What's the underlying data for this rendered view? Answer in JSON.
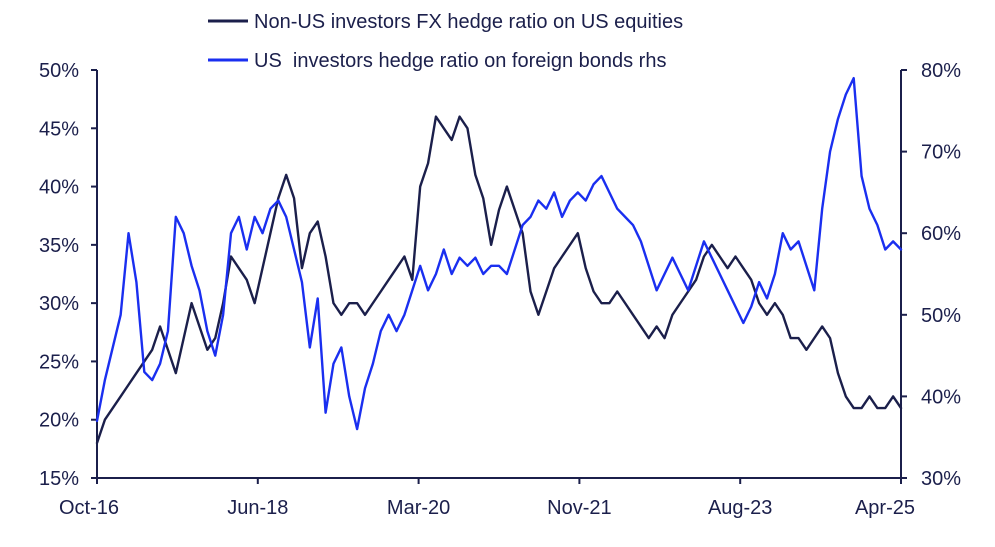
{
  "chart_data": {
    "type": "line",
    "title": "",
    "x_tick_labels": [
      "Oct-16",
      "Jun-18",
      "Mar-20",
      "Nov-21",
      "Aug-23",
      "Apr-25"
    ],
    "y_left": {
      "range": [
        0.15,
        0.5
      ],
      "ticks": [
        "15%",
        "20%",
        "25%",
        "30%",
        "35%",
        "40%",
        "45%",
        "50%"
      ]
    },
    "y_right": {
      "range": [
        0.3,
        0.8
      ],
      "ticks": [
        "30%",
        "40%",
        "50%",
        "60%",
        "70%",
        "80%"
      ]
    },
    "grid": false,
    "legend_position": "top",
    "colors": {
      "axis": "#1b1f4b",
      "series_dark": "#1b1f4b",
      "series_blue": "#1a2ff0"
    },
    "series": [
      {
        "name": "Non-US investors FX hedge ratio on US equities",
        "axis": "left",
        "color": "#1b1f4b",
        "points": [
          [
            "2016-10",
            0.18
          ],
          [
            "2016-11",
            0.2
          ],
          [
            "2016-12",
            0.21
          ],
          [
            "2017-01",
            0.22
          ],
          [
            "2017-02",
            0.23
          ],
          [
            "2017-03",
            0.24
          ],
          [
            "2017-04",
            0.25
          ],
          [
            "2017-05",
            0.26
          ],
          [
            "2017-06",
            0.28
          ],
          [
            "2017-07",
            0.26
          ],
          [
            "2017-08",
            0.24
          ],
          [
            "2017-09",
            0.27
          ],
          [
            "2017-10",
            0.3
          ],
          [
            "2017-11",
            0.28
          ],
          [
            "2017-12",
            0.26
          ],
          [
            "2018-01",
            0.27
          ],
          [
            "2018-02",
            0.3
          ],
          [
            "2018-03",
            0.34
          ],
          [
            "2018-04",
            0.33
          ],
          [
            "2018-05",
            0.32
          ],
          [
            "2018-06",
            0.3
          ],
          [
            "2018-07",
            0.33
          ],
          [
            "2018-08",
            0.36
          ],
          [
            "2018-09",
            0.39
          ],
          [
            "2018-10",
            0.41
          ],
          [
            "2018-11",
            0.39
          ],
          [
            "2018-12",
            0.33
          ],
          [
            "2019-01",
            0.36
          ],
          [
            "2019-02",
            0.37
          ],
          [
            "2019-03",
            0.34
          ],
          [
            "2019-04",
            0.3
          ],
          [
            "2019-05",
            0.29
          ],
          [
            "2019-06",
            0.3
          ],
          [
            "2019-07",
            0.3
          ],
          [
            "2019-08",
            0.29
          ],
          [
            "2019-09",
            0.3
          ],
          [
            "2019-10",
            0.31
          ],
          [
            "2019-11",
            0.32
          ],
          [
            "2019-12",
            0.33
          ],
          [
            "2020-01",
            0.34
          ],
          [
            "2020-02",
            0.32
          ],
          [
            "2020-03",
            0.4
          ],
          [
            "2020-04",
            0.42
          ],
          [
            "2020-05",
            0.46
          ],
          [
            "2020-06",
            0.45
          ],
          [
            "2020-07",
            0.44
          ],
          [
            "2020-08",
            0.46
          ],
          [
            "2020-09",
            0.45
          ],
          [
            "2020-10",
            0.41
          ],
          [
            "2020-11",
            0.39
          ],
          [
            "2020-12",
            0.35
          ],
          [
            "2021-01",
            0.38
          ],
          [
            "2021-02",
            0.4
          ],
          [
            "2021-03",
            0.38
          ],
          [
            "2021-04",
            0.36
          ],
          [
            "2021-05",
            0.31
          ],
          [
            "2021-06",
            0.29
          ],
          [
            "2021-07",
            0.31
          ],
          [
            "2021-08",
            0.33
          ],
          [
            "2021-09",
            0.34
          ],
          [
            "2021-10",
            0.35
          ],
          [
            "2021-11",
            0.36
          ],
          [
            "2021-12",
            0.33
          ],
          [
            "2022-01",
            0.31
          ],
          [
            "2022-02",
            0.3
          ],
          [
            "2022-03",
            0.3
          ],
          [
            "2022-04",
            0.31
          ],
          [
            "2022-05",
            0.3
          ],
          [
            "2022-06",
            0.29
          ],
          [
            "2022-07",
            0.28
          ],
          [
            "2022-08",
            0.27
          ],
          [
            "2022-09",
            0.28
          ],
          [
            "2022-10",
            0.27
          ],
          [
            "2022-11",
            0.29
          ],
          [
            "2022-12",
            0.3
          ],
          [
            "2023-01",
            0.31
          ],
          [
            "2023-02",
            0.32
          ],
          [
            "2023-03",
            0.34
          ],
          [
            "2023-04",
            0.35
          ],
          [
            "2023-05",
            0.34
          ],
          [
            "2023-06",
            0.33
          ],
          [
            "2023-07",
            0.34
          ],
          [
            "2023-08",
            0.33
          ],
          [
            "2023-09",
            0.32
          ],
          [
            "2023-10",
            0.3
          ],
          [
            "2023-11",
            0.29
          ],
          [
            "2023-12",
            0.3
          ],
          [
            "2024-01",
            0.29
          ],
          [
            "2024-02",
            0.27
          ],
          [
            "2024-03",
            0.27
          ],
          [
            "2024-04",
            0.26
          ],
          [
            "2024-05",
            0.27
          ],
          [
            "2024-06",
            0.28
          ],
          [
            "2024-07",
            0.27
          ],
          [
            "2024-08",
            0.24
          ],
          [
            "2024-09",
            0.22
          ],
          [
            "2024-10",
            0.21
          ],
          [
            "2024-11",
            0.21
          ],
          [
            "2024-12",
            0.22
          ],
          [
            "2025-01",
            0.21
          ],
          [
            "2025-02",
            0.21
          ],
          [
            "2025-03",
            0.22
          ],
          [
            "2025-04",
            0.21
          ]
        ]
      },
      {
        "name": "US  investors hedge ratio on foreign bonds rhs",
        "axis": "right",
        "color": "#1a2ff0",
        "points": [
          [
            "2016-10",
            0.37
          ],
          [
            "2016-11",
            0.42
          ],
          [
            "2016-12",
            0.46
          ],
          [
            "2017-01",
            0.5
          ],
          [
            "2017-02",
            0.6
          ],
          [
            "2017-03",
            0.54
          ],
          [
            "2017-04",
            0.43
          ],
          [
            "2017-05",
            0.42
          ],
          [
            "2017-06",
            0.44
          ],
          [
            "2017-07",
            0.48
          ],
          [
            "2017-08",
            0.62
          ],
          [
            "2017-09",
            0.6
          ],
          [
            "2017-10",
            0.56
          ],
          [
            "2017-11",
            0.53
          ],
          [
            "2017-12",
            0.48
          ],
          [
            "2018-01",
            0.45
          ],
          [
            "2018-02",
            0.5
          ],
          [
            "2018-03",
            0.6
          ],
          [
            "2018-04",
            0.62
          ],
          [
            "2018-05",
            0.58
          ],
          [
            "2018-06",
            0.62
          ],
          [
            "2018-07",
            0.6
          ],
          [
            "2018-08",
            0.63
          ],
          [
            "2018-09",
            0.64
          ],
          [
            "2018-10",
            0.62
          ],
          [
            "2018-11",
            0.58
          ],
          [
            "2018-12",
            0.54
          ],
          [
            "2019-01",
            0.46
          ],
          [
            "2019-02",
            0.52
          ],
          [
            "2019-03",
            0.38
          ],
          [
            "2019-04",
            0.44
          ],
          [
            "2019-05",
            0.46
          ],
          [
            "2019-06",
            0.4
          ],
          [
            "2019-07",
            0.36
          ],
          [
            "2019-08",
            0.41
          ],
          [
            "2019-09",
            0.44
          ],
          [
            "2019-10",
            0.48
          ],
          [
            "2019-11",
            0.5
          ],
          [
            "2019-12",
            0.48
          ],
          [
            "2020-01",
            0.5
          ],
          [
            "2020-02",
            0.53
          ],
          [
            "2020-03",
            0.56
          ],
          [
            "2020-04",
            0.53
          ],
          [
            "2020-05",
            0.55
          ],
          [
            "2020-06",
            0.58
          ],
          [
            "2020-07",
            0.55
          ],
          [
            "2020-08",
            0.57
          ],
          [
            "2020-09",
            0.56
          ],
          [
            "2020-10",
            0.57
          ],
          [
            "2020-11",
            0.55
          ],
          [
            "2020-12",
            0.56
          ],
          [
            "2021-01",
            0.56
          ],
          [
            "2021-02",
            0.55
          ],
          [
            "2021-03",
            0.58
          ],
          [
            "2021-04",
            0.61
          ],
          [
            "2021-05",
            0.62
          ],
          [
            "2021-06",
            0.64
          ],
          [
            "2021-07",
            0.63
          ],
          [
            "2021-08",
            0.65
          ],
          [
            "2021-09",
            0.62
          ],
          [
            "2021-10",
            0.64
          ],
          [
            "2021-11",
            0.65
          ],
          [
            "2021-12",
            0.64
          ],
          [
            "2022-01",
            0.66
          ],
          [
            "2022-02",
            0.67
          ],
          [
            "2022-03",
            0.65
          ],
          [
            "2022-04",
            0.63
          ],
          [
            "2022-05",
            0.62
          ],
          [
            "2022-06",
            0.61
          ],
          [
            "2022-07",
            0.59
          ],
          [
            "2022-08",
            0.56
          ],
          [
            "2022-09",
            0.53
          ],
          [
            "2022-10",
            0.55
          ],
          [
            "2022-11",
            0.57
          ],
          [
            "2022-12",
            0.55
          ],
          [
            "2023-01",
            0.53
          ],
          [
            "2023-02",
            0.56
          ],
          [
            "2023-03",
            0.59
          ],
          [
            "2023-04",
            0.57
          ],
          [
            "2023-05",
            0.55
          ],
          [
            "2023-06",
            0.53
          ],
          [
            "2023-07",
            0.51
          ],
          [
            "2023-08",
            0.49
          ],
          [
            "2023-09",
            0.51
          ],
          [
            "2023-10",
            0.54
          ],
          [
            "2023-11",
            0.52
          ],
          [
            "2023-12",
            0.55
          ],
          [
            "2024-01",
            0.6
          ],
          [
            "2024-02",
            0.58
          ],
          [
            "2024-03",
            0.59
          ],
          [
            "2024-04",
            0.56
          ],
          [
            "2024-05",
            0.53
          ],
          [
            "2024-06",
            0.63
          ],
          [
            "2024-07",
            0.7
          ],
          [
            "2024-08",
            0.74
          ],
          [
            "2024-09",
            0.77
          ],
          [
            "2024-10",
            0.79
          ],
          [
            "2024-11",
            0.67
          ],
          [
            "2024-12",
            0.63
          ],
          [
            "2025-01",
            0.61
          ],
          [
            "2025-02",
            0.58
          ],
          [
            "2025-03",
            0.59
          ],
          [
            "2025-04",
            0.58
          ]
        ]
      }
    ]
  }
}
